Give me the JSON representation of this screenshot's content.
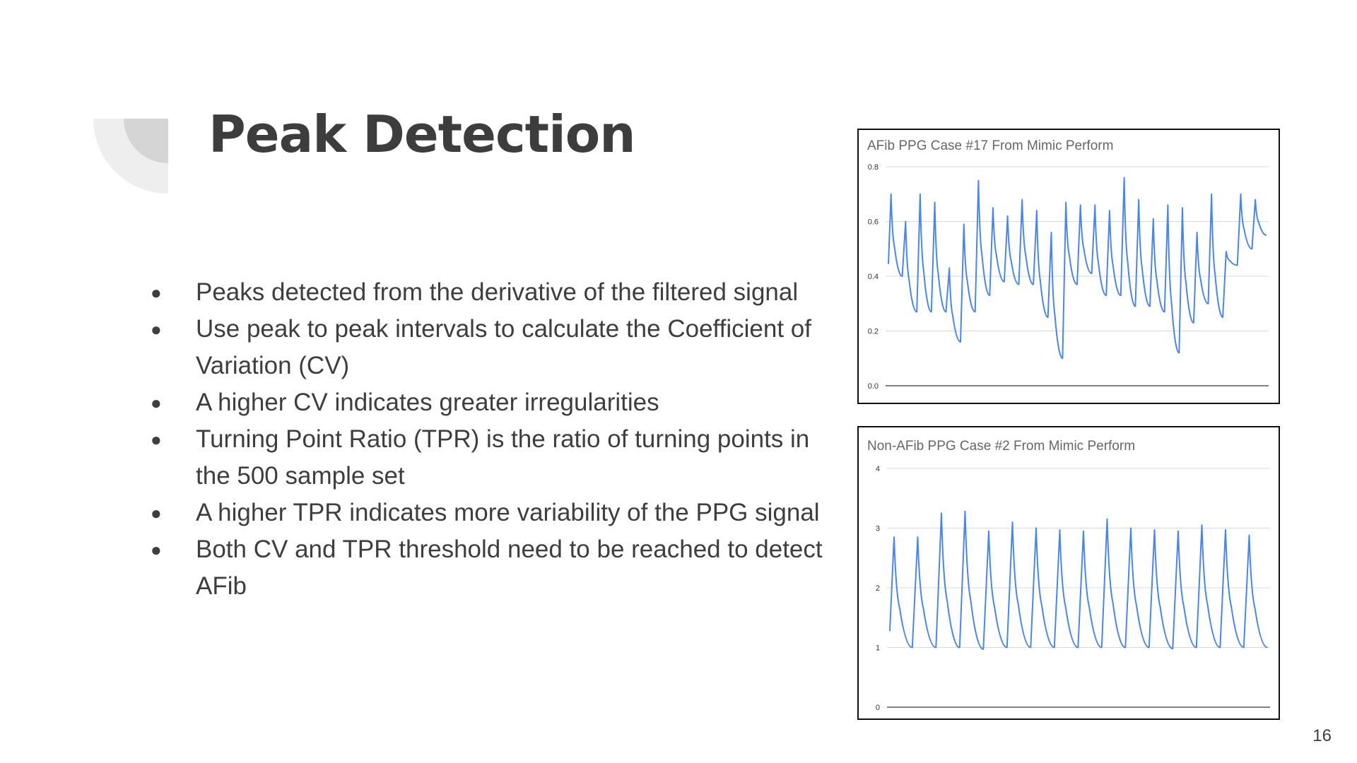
{
  "slide": {
    "title": "Peak Detection",
    "page_number": "16",
    "bullets": [
      "Peaks detected from the derivative of the filtered signal",
      "Use peak to peak intervals to calculate the Coefficient of Variation (CV)",
      "A higher CV indicates greater irregularities",
      "Turning Point Ratio (TPR) is the ratio of turning points in the 500 sample set",
      "A higher TPR indicates more variability of the PPG signal",
      "Both CV and TPR threshold need to be reached to detect AFib"
    ]
  },
  "colors": {
    "line": "#4a86e8",
    "grid": "#d9d9d9",
    "baseline": "#555555",
    "deco_light": "#eeeeee",
    "deco_dark": "#d5d5d5"
  },
  "chart_data": [
    {
      "type": "line",
      "title": "AFib PPG Case #17 From Mimic Perform",
      "ylim": [
        0,
        0.8
      ],
      "yticks": [
        "0.0",
        "0.2",
        "0.4",
        "0.6",
        "0.8"
      ],
      "grid": true,
      "legend": "none",
      "series": [
        {
          "peaks": [
            0.7,
            0.6,
            0.7,
            0.67,
            0.43,
            0.59,
            0.75,
            0.65,
            0.62,
            0.68,
            0.64,
            0.56,
            0.67,
            0.66,
            0.66,
            0.64,
            0.76,
            0.68,
            0.61,
            0.66,
            0.65,
            0.56,
            0.7,
            0.49,
            0.7,
            0.68
          ],
          "troughs": [
            0.4,
            0.27,
            0.27,
            0.27,
            0.16,
            0.27,
            0.33,
            0.38,
            0.37,
            0.37,
            0.25,
            0.1,
            0.37,
            0.41,
            0.33,
            0.33,
            0.29,
            0.29,
            0.27,
            0.12,
            0.23,
            0.3,
            0.25,
            0.44,
            0.5,
            0.55
          ]
        }
      ]
    },
    {
      "type": "line",
      "title": "Non-AFib PPG Case #2 From Mimic Perform",
      "ylim": [
        0,
        4
      ],
      "yticks": [
        "0",
        "1",
        "2",
        "3",
        "4"
      ],
      "grid": true,
      "legend": "none",
      "series": [
        {
          "peaks": [
            2.85,
            2.85,
            3.25,
            3.28,
            2.95,
            3.1,
            3.0,
            2.97,
            2.95,
            3.15,
            3.0,
            2.97,
            2.95,
            3.05,
            2.97,
            2.88
          ],
          "troughs": [
            1.0,
            1.0,
            1.0,
            0.97,
            1.0,
            1.0,
            1.0,
            1.0,
            1.0,
            1.0,
            1.0,
            0.98,
            1.0,
            1.0,
            1.0,
            1.0
          ]
        }
      ]
    }
  ]
}
